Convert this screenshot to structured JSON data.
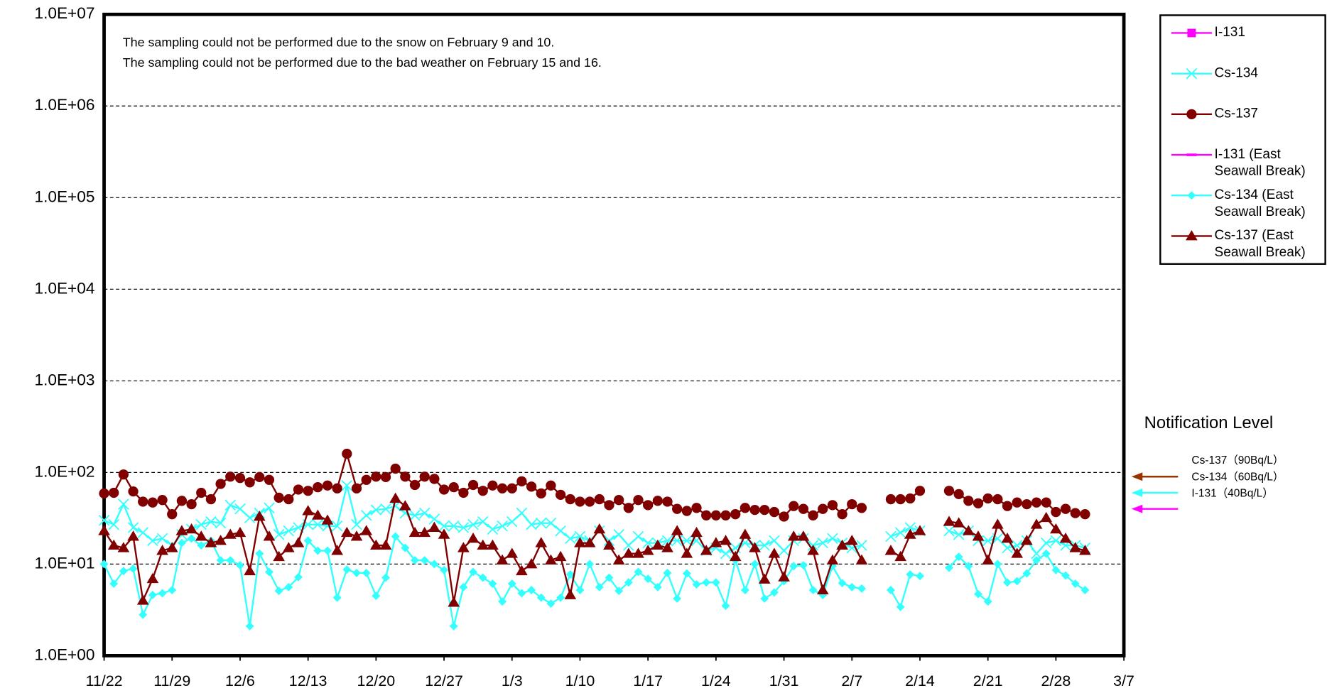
{
  "chart_data": {
    "type": "line",
    "log_scale": true,
    "grid": true,
    "annotations": [
      "The sampling could not be performed due to the snow on February 9 and 10.",
      "The sampling could not be performed due to the bad weather on February 15 and 16."
    ],
    "ylim": [
      1,
      10000000
    ],
    "yticks": [
      {
        "value": 1,
        "label": "1.0E+00"
      },
      {
        "value": 10,
        "label": "1.0E+01"
      },
      {
        "value": 100,
        "label": "1.0E+02"
      },
      {
        "value": 1000,
        "label": "1.0E+03"
      },
      {
        "value": 10000,
        "label": "1.0E+04"
      },
      {
        "value": 100000,
        "label": "1.0E+05"
      },
      {
        "value": 1000000,
        "label": "1.0E+06"
      },
      {
        "value": 10000000,
        "label": "1.0E+07"
      }
    ],
    "xlim": [
      "11/22",
      "3/7"
    ],
    "xticks": [
      "11/22",
      "11/29",
      "12/6",
      "12/13",
      "12/20",
      "12/27",
      "1/3",
      "1/10",
      "1/17",
      "1/24",
      "1/31",
      "2/7",
      "2/14",
      "2/21",
      "2/28",
      "3/7"
    ],
    "x": [
      "11/22",
      "11/23",
      "11/24",
      "11/25",
      "11/26",
      "11/27",
      "11/28",
      "11/29",
      "11/30",
      "12/1",
      "12/2",
      "12/3",
      "12/4",
      "12/5",
      "12/6",
      "12/7",
      "12/8",
      "12/9",
      "12/10",
      "12/11",
      "12/12",
      "12/13",
      "12/14",
      "12/15",
      "12/16",
      "12/17",
      "12/18",
      "12/19",
      "12/20",
      "12/21",
      "12/22",
      "12/23",
      "12/24",
      "12/25",
      "12/26",
      "12/27",
      "12/28",
      "12/29",
      "12/30",
      "12/31",
      "1/1",
      "1/2",
      "1/3",
      "1/4",
      "1/5",
      "1/6",
      "1/7",
      "1/8",
      "1/9",
      "1/10",
      "1/11",
      "1/12",
      "1/13",
      "1/14",
      "1/15",
      "1/16",
      "1/17",
      "1/18",
      "1/19",
      "1/20",
      "1/21",
      "1/22",
      "1/23",
      "1/24",
      "1/25",
      "1/26",
      "1/27",
      "1/28",
      "1/29",
      "1/30",
      "1/31",
      "2/1",
      "2/2",
      "2/3",
      "2/4",
      "2/5",
      "2/6",
      "2/7",
      "2/8",
      "2/9",
      "2/10",
      "2/11",
      "2/12",
      "2/13",
      "2/14",
      "2/15",
      "2/16",
      "2/17",
      "2/18",
      "2/19",
      "2/20",
      "2/21",
      "2/22",
      "2/23",
      "2/24",
      "2/25",
      "2/26",
      "2/27",
      "2/28",
      "3/1",
      "3/2",
      "3/3"
    ],
    "series": [
      {
        "name": "I-131",
        "color": "#ff00ff",
        "marker": "square",
        "values": [
          null,
          null,
          null,
          null,
          null,
          null,
          null,
          null,
          null,
          null,
          null,
          null,
          null,
          null,
          null,
          null,
          null,
          null,
          null,
          null,
          null,
          null,
          null,
          null,
          null,
          null,
          null,
          null,
          null,
          null,
          null,
          null,
          null,
          null,
          null,
          null,
          null,
          null,
          null,
          null,
          null,
          null,
          null,
          null,
          null,
          null,
          null,
          null,
          null,
          null,
          null,
          null,
          null,
          null,
          null,
          null,
          null,
          null,
          null,
          null,
          null,
          null,
          null,
          null,
          null,
          null,
          null,
          null,
          null,
          null,
          null,
          null,
          null,
          null,
          null,
          null,
          null,
          null,
          null,
          null,
          null,
          null,
          null,
          null,
          null,
          null,
          null,
          null,
          null,
          null,
          null,
          null,
          null,
          null,
          null,
          null,
          null,
          null,
          null,
          null,
          null,
          null
        ]
      },
      {
        "name": "Cs-134",
        "color": "#33ffff",
        "marker": "x",
        "values": [
          30,
          27,
          45,
          25,
          22,
          18,
          19,
          16,
          21,
          24,
          27,
          29,
          28,
          44,
          40,
          32,
          36,
          41,
          21,
          23,
          25,
          27,
          27,
          26,
          26,
          72,
          27,
          34,
          39,
          40,
          43,
          36,
          34,
          36,
          31,
          26,
          26,
          25,
          27,
          29,
          24,
          26,
          29,
          36,
          27,
          28,
          28,
          23,
          19,
          20,
          18,
          23,
          18,
          21,
          16,
          20,
          17,
          17,
          18,
          18,
          18,
          18,
          14,
          15,
          13,
          15,
          17,
          16,
          16,
          18,
          14,
          18,
          19,
          16,
          17,
          19,
          17,
          15,
          16,
          null,
          null,
          20,
          22,
          25,
          23,
          null,
          null,
          23,
          21,
          23,
          18,
          18,
          19,
          15,
          16,
          18,
          13,
          17,
          18,
          16,
          16,
          15
        ]
      },
      {
        "name": "Cs-137",
        "color": "#800000",
        "marker": "circle",
        "values": [
          59,
          60,
          95,
          62,
          48,
          47,
          50,
          35,
          49,
          45,
          60,
          51,
          75,
          90,
          87,
          78,
          89,
          83,
          53,
          51,
          65,
          63,
          69,
          72,
          67,
          160,
          67,
          83,
          90,
          89,
          110,
          90,
          73,
          90,
          85,
          65,
          69,
          60,
          73,
          63,
          72,
          67,
          67,
          80,
          70,
          59,
          72,
          57,
          51,
          48,
          48,
          51,
          44,
          50,
          41,
          50,
          44,
          49,
          48,
          40,
          38,
          41,
          34,
          34,
          34,
          35,
          41,
          39,
          39,
          37,
          33,
          43,
          40,
          34,
          40,
          44,
          35,
          45,
          41,
          null,
          null,
          51,
          51,
          52,
          63,
          null,
          null,
          63,
          58,
          49,
          46,
          52,
          51,
          43,
          47,
          45,
          47,
          47,
          37,
          40,
          36,
          35
        ]
      },
      {
        "name": "I-131 (East Seawall Break)",
        "color": "#ff00ff",
        "marker": "dash",
        "values": [
          null,
          null,
          null,
          null,
          null,
          null,
          null,
          null,
          null,
          null,
          null,
          null,
          null,
          null,
          null,
          null,
          null,
          null,
          null,
          null,
          null,
          null,
          null,
          null,
          null,
          null,
          null,
          null,
          null,
          null,
          null,
          null,
          null,
          null,
          null,
          null,
          null,
          null,
          null,
          null,
          null,
          null,
          null,
          null,
          null,
          null,
          null,
          null,
          null,
          null,
          null,
          null,
          null,
          null,
          null,
          null,
          null,
          null,
          null,
          null,
          null,
          null,
          null,
          null,
          null,
          null,
          null,
          null,
          null,
          null,
          null,
          null,
          null,
          null,
          null,
          null,
          null,
          null,
          null,
          null,
          null,
          null,
          null,
          null,
          null,
          null,
          null,
          null,
          null,
          null,
          null,
          null,
          null,
          null,
          null,
          null,
          null,
          null,
          null,
          null,
          null,
          null
        ]
      },
      {
        "name": "Cs-134 (East Seawall Break)",
        "color": "#33ffff",
        "marker": "diamond",
        "values": [
          10,
          6.1,
          8.4,
          8.9,
          2.8,
          4.6,
          4.8,
          5.2,
          17,
          19,
          16,
          18,
          11,
          11,
          9.7,
          2.1,
          13,
          8.2,
          5.1,
          5.6,
          7.2,
          18,
          14,
          14,
          4.3,
          8.7,
          8,
          8,
          4.5,
          7.1,
          20,
          15,
          11,
          11,
          10,
          8.6,
          2.1,
          5.6,
          8.2,
          7.1,
          6.1,
          3.9,
          6.1,
          4.8,
          5.2,
          4.3,
          3.7,
          4.3,
          7.7,
          5.2,
          10,
          5.6,
          7.1,
          5.1,
          6.3,
          8.2,
          6.9,
          5.6,
          8,
          4.2,
          7.9,
          6,
          6.3,
          6.3,
          3.5,
          11,
          5.2,
          10,
          4.2,
          4.9,
          6.5,
          9.5,
          9.7,
          5.2,
          4.6,
          9.5,
          6.2,
          5.6,
          5.4,
          null,
          null,
          5.2,
          3.4,
          7.7,
          7.4,
          null,
          null,
          9.1,
          12,
          9.5,
          4.7,
          3.9,
          10,
          6.3,
          6.5,
          7.9,
          11,
          13,
          8.6,
          7.5,
          6.1,
          5.2
        ]
      },
      {
        "name": "Cs-137 (East Seawall Break)",
        "color": "#800000",
        "marker": "triangle",
        "values": [
          23,
          16,
          15,
          20,
          4,
          6.9,
          14,
          15,
          23,
          24,
          20,
          17,
          18,
          21,
          22,
          8.4,
          33,
          20,
          12,
          15,
          17,
          38,
          34,
          30,
          14,
          22,
          20,
          23,
          16,
          16,
          52,
          43,
          22,
          22,
          25,
          21,
          3.8,
          15,
          19,
          16,
          16,
          11,
          13,
          8.4,
          10,
          17,
          11,
          12,
          4.6,
          17,
          17,
          24,
          16,
          11,
          13,
          13,
          14,
          16,
          15,
          23,
          13,
          22,
          14,
          17,
          18,
          12,
          21,
          15,
          6.8,
          13,
          7.2,
          20,
          20,
          14,
          5.2,
          11,
          16,
          18,
          11,
          null,
          null,
          14,
          12,
          21,
          23,
          null,
          null,
          29,
          28,
          23,
          20,
          11,
          27,
          19,
          13,
          18,
          27,
          32,
          24,
          19,
          15,
          14
        ]
      }
    ],
    "notification": {
      "title": "Notification Level",
      "levels": [
        {
          "label": "Cs-137（90Bq/L）",
          "value": 90,
          "color": "#993300"
        },
        {
          "label": "Cs-134（60Bq/L）",
          "value": 60,
          "color": "#33ffff"
        },
        {
          "label": "I-131（40Bq/L）",
          "value": 40,
          "color": "#ff00ff"
        }
      ]
    }
  }
}
